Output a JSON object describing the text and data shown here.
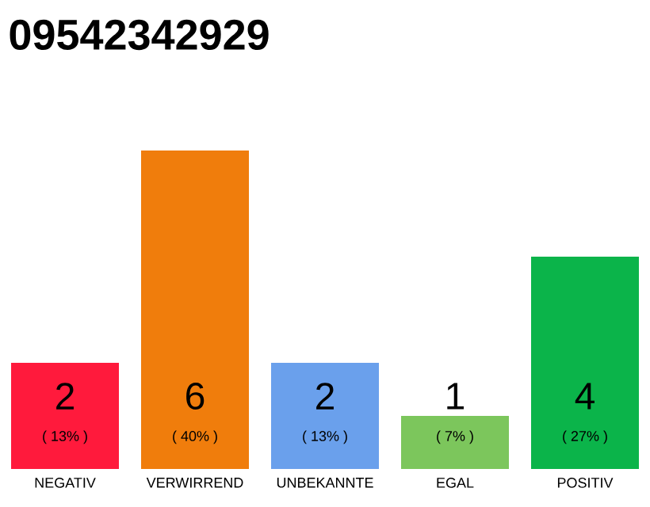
{
  "chart_data": {
    "type": "bar",
    "title": "09542342929",
    "categories": [
      "NEGATIV",
      "VERWIRREND",
      "UNBEKANNTE",
      "EGAL",
      "POSITIV"
    ],
    "values": [
      2,
      6,
      2,
      1,
      4
    ],
    "colors": [
      "#ff1a3c",
      "#f07d0c",
      "#6aa0ec",
      "#7cc65c",
      "#0bb44a"
    ],
    "data_labels": true,
    "annotations": [
      "( 13% )",
      "( 40% )",
      "( 13% )",
      "( 7% )",
      "( 27% )"
    ]
  }
}
